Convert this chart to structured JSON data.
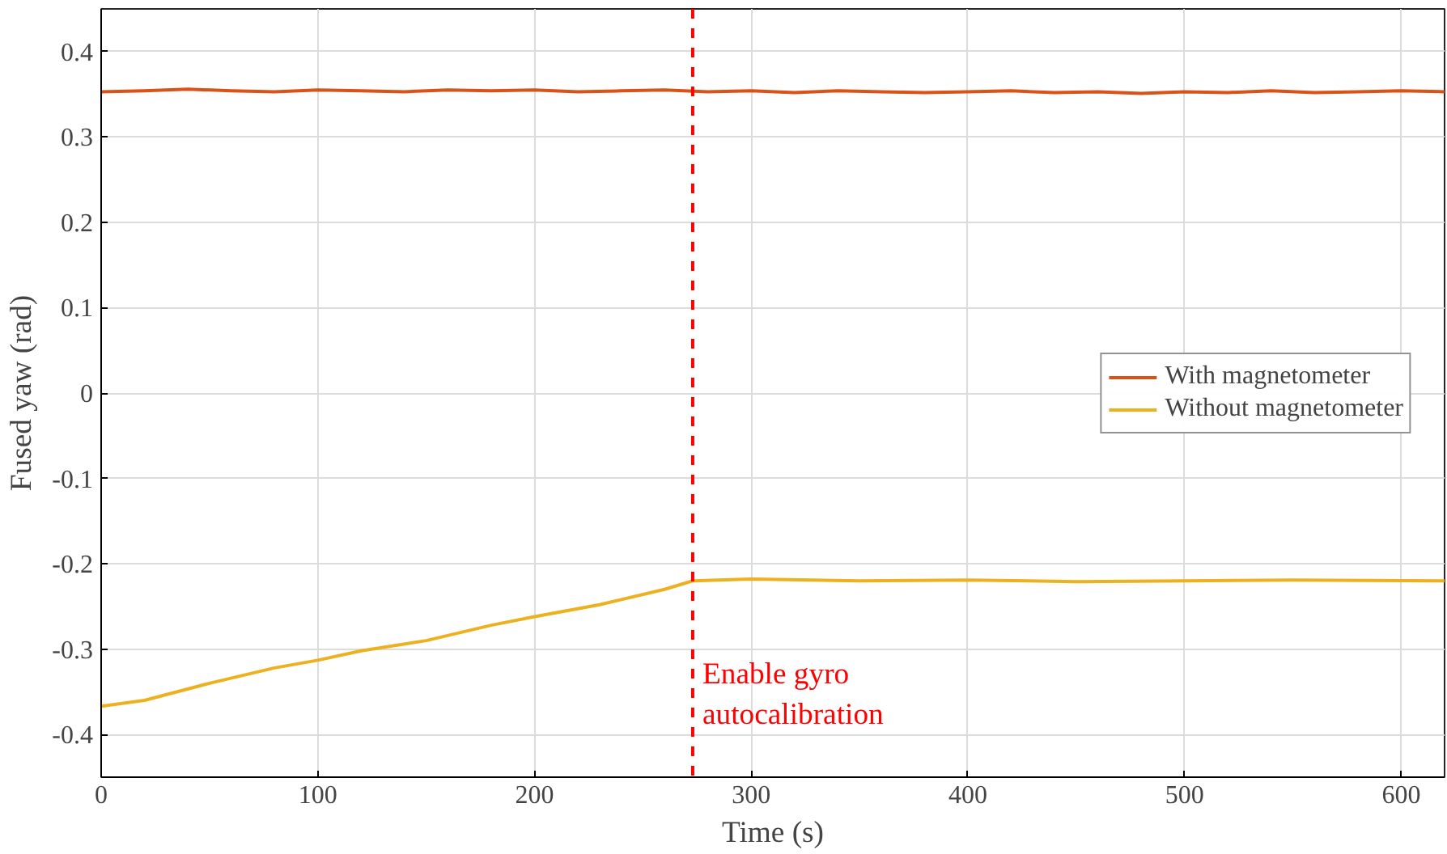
{
  "chart_data": {
    "type": "line",
    "xlabel": "Time (s)",
    "ylabel": "Fused yaw (rad)",
    "xlim": [
      0,
      620
    ],
    "ylim": [
      -0.45,
      0.45
    ],
    "xticks": [
      0,
      100,
      200,
      300,
      400,
      500,
      600
    ],
    "yticks": [
      0.4,
      0.3,
      0.2,
      0.1,
      0,
      -0.1,
      -0.2,
      -0.3,
      -0.4
    ],
    "grid": true,
    "legend": "right",
    "line_style": "solid",
    "marker": "none",
    "series": [
      {
        "name": "With magnetometer",
        "color": "#d95319",
        "x": [
          0,
          20,
          40,
          60,
          80,
          100,
          120,
          140,
          160,
          180,
          200,
          220,
          240,
          260,
          280,
          300,
          320,
          340,
          360,
          380,
          400,
          420,
          440,
          460,
          480,
          500,
          520,
          540,
          560,
          580,
          600,
          620
        ],
        "values": [
          0.353,
          0.354,
          0.356,
          0.354,
          0.353,
          0.355,
          0.354,
          0.353,
          0.355,
          0.354,
          0.355,
          0.353,
          0.354,
          0.355,
          0.353,
          0.354,
          0.352,
          0.354,
          0.353,
          0.352,
          0.353,
          0.354,
          0.352,
          0.353,
          0.351,
          0.353,
          0.352,
          0.354,
          0.352,
          0.353,
          0.354,
          0.353
        ]
      },
      {
        "name": "Without magnetometer",
        "color": "#edb120",
        "x": [
          0,
          20,
          50,
          80,
          100,
          120,
          150,
          180,
          200,
          230,
          260,
          273,
          300,
          350,
          400,
          450,
          500,
          550,
          620
        ],
        "values": [
          -0.367,
          -0.36,
          -0.34,
          -0.322,
          -0.313,
          -0.302,
          -0.29,
          -0.272,
          -0.262,
          -0.248,
          -0.23,
          -0.22,
          -0.218,
          -0.22,
          -0.219,
          -0.221,
          -0.22,
          -0.219,
          -0.22
        ]
      }
    ],
    "ref_lines": [
      {
        "axis": "x",
        "value": 273,
        "label": "Enable gyro\nautocalibration",
        "color": "#ff0000",
        "line_style": "dashed"
      }
    ]
  }
}
